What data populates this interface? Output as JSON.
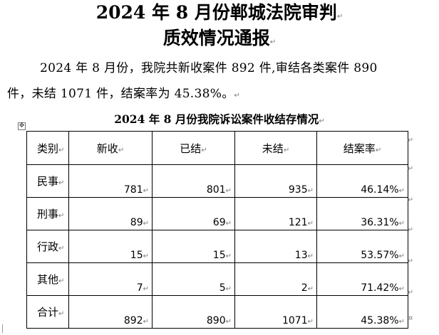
{
  "title_line1": "2024 年 8 月份郸城法院审判",
  "title_line2": "质效情况通报",
  "paragraph": {
    "line1": "2024 年 8 月份，我院共新收案件 892 件,审结各类案件 890",
    "line2": "件，未结 1071 件，结案率为 45.38%。"
  },
  "table_caption": "2024 年 8 月份我院诉讼案件收结存情况",
  "table": {
    "headers": [
      "类别",
      "新收",
      "已结",
      "未结",
      "结案率"
    ],
    "rows": [
      {
        "category": "民事",
        "new": "781",
        "closed": "801",
        "pending": "935",
        "rate": "46.14%"
      },
      {
        "category": "刑事",
        "new": "89",
        "closed": "69",
        "pending": "121",
        "rate": "36.31%"
      },
      {
        "category": "行政",
        "new": "15",
        "closed": "15",
        "pending": "13",
        "rate": "53.57%"
      },
      {
        "category": "其他",
        "new": "7",
        "closed": "5",
        "pending": "2",
        "rate": "71.42%"
      },
      {
        "category": "合计",
        "new": "892",
        "closed": "890",
        "pending": "1071",
        "rate": "45.38%"
      }
    ]
  },
  "marks": {
    "paragraph_mark": "↵",
    "cell_end_mark": "↵",
    "row_end_mark": "¤",
    "table_anchor": "✥"
  }
}
